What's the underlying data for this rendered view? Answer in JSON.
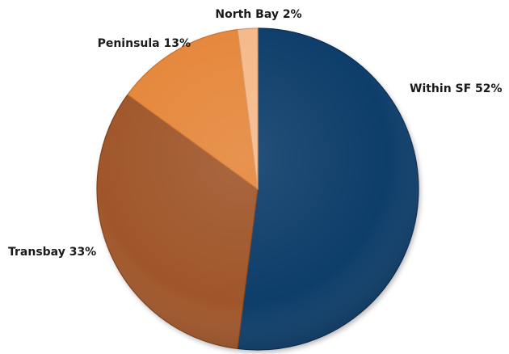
{
  "chart_data": {
    "type": "pie",
    "title": "",
    "start_angle_deg": 0,
    "direction": "clockwise",
    "slices": [
      {
        "label": "Within SF 52%",
        "name": "Within SF",
        "value": 52,
        "color": "#0f3d6a",
        "edge_color": "#0a2c4e"
      },
      {
        "label": "Transbay 33%",
        "name": "Transbay",
        "value": 33,
        "color": "#a0572a",
        "edge_color": "#7d421f"
      },
      {
        "label": "Peninsula 13%",
        "name": "Peninsula",
        "value": 13,
        "color": "#e5873b",
        "edge_color": "#c56f2b"
      },
      {
        "label": "North Bay 2%",
        "name": "North Bay",
        "value": 2,
        "color": "#f5b98a",
        "edge_color": "#d99868"
      }
    ],
    "legend": "none",
    "labels_position": "outside"
  }
}
